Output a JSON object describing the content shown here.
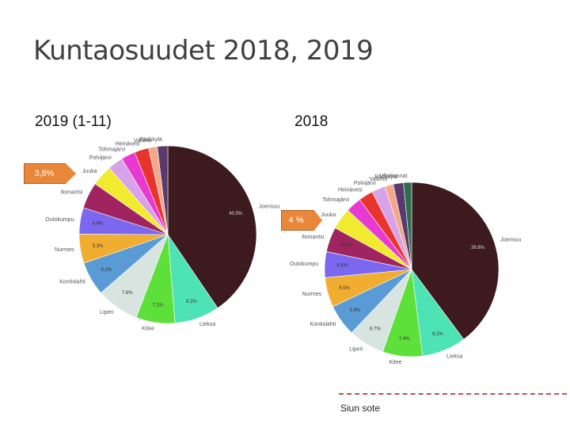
{
  "title": "Kuntaosuudet 2018, 2019",
  "footer": "Siun sote",
  "chart_data": [
    {
      "type": "pie",
      "title": "2019 (1-11)",
      "annotation": "3,8%",
      "categories": [
        "Joensuu",
        "Lieksa",
        "Kitee",
        "Liperi",
        "Kontiolahti",
        "Nurmes",
        "Outokumpu",
        "Ilomantsi",
        "Juuka",
        "Polvijärvi",
        "Tohmajärvi",
        "Heinävesi",
        "Valtimo",
        "Rääkkylä"
      ],
      "values": [
        40.5,
        8.2,
        7.1,
        7.8,
        6.2,
        5.3,
        4.8,
        4.8,
        3.8,
        2.8,
        2.6,
        2.6,
        1.6,
        1.9
      ],
      "value_labels": [
        "40.5%",
        "8.2%",
        "7.1%",
        "7.8%",
        "6.2%",
        "5.3%",
        "4.8%",
        null,
        null,
        null,
        null,
        null,
        null,
        null
      ],
      "colors": [
        "#3d1a1d",
        "#4de3b5",
        "#5ee03a",
        "#d7e4e0",
        "#5b9bd5",
        "#f0ad2f",
        "#7b68ee",
        "#a0245f",
        "#f2ea2e",
        "#d8a2e8",
        "#e83ad3",
        "#e8342f",
        "#f2a98a",
        "#5a3a6e"
      ]
    },
    {
      "type": "pie",
      "title": "2018",
      "annotation": "4 %",
      "categories": [
        "Joensuu",
        "Lieksa",
        "Kitee",
        "Liperi",
        "Kontiolahti",
        "Nurmes",
        "Outokumpu",
        "Ilomantsi",
        "Juuka",
        "Tohmajärvi",
        "Heinävesi",
        "Polvijärvi",
        "Valtimo",
        "Rääkkylä",
        "Ulkokunnat"
      ],
      "values": [
        39.8,
        8.2,
        7.4,
        6.7,
        5.9,
        5.5,
        4.8,
        4.6,
        4.0,
        2.9,
        2.7,
        2.5,
        1.6,
        1.9,
        1.5
      ],
      "value_labels": [
        "39.8%",
        "8.2%",
        "7.4%",
        "6.7%",
        "5.9%",
        "5.5%",
        "4.8%",
        "4.6%",
        null,
        null,
        null,
        null,
        null,
        null,
        null
      ],
      "colors": [
        "#3d1a1d",
        "#4de3b5",
        "#5ee03a",
        "#d7e4e0",
        "#5b9bd5",
        "#f0ad2f",
        "#7b68ee",
        "#a0245f",
        "#f2ea2e",
        "#e83ad3",
        "#e8342f",
        "#d8a2e8",
        "#f2a98a",
        "#5a3a6e",
        "#2f6f4f"
      ]
    }
  ]
}
